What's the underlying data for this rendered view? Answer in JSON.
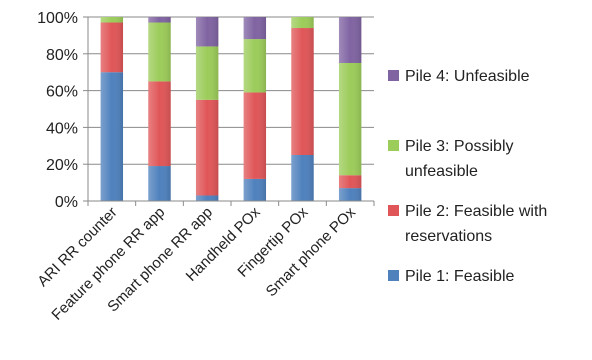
{
  "chart_data": {
    "type": "bar",
    "stacked": true,
    "categories": [
      "ARI RR counter",
      "Feature phone RR app",
      "Smart phone RR app",
      "Handheld POx",
      "Fingertip POx",
      "Smart phone POx"
    ],
    "series": [
      {
        "name": "Pile 1: Feasible",
        "color": "#4f81bd",
        "values": [
          70,
          19,
          3,
          12,
          25,
          7
        ]
      },
      {
        "name": "Pile 2: Feasible with reservations",
        "color": "#e05658",
        "values": [
          27,
          46,
          52,
          47,
          69,
          7
        ]
      },
      {
        "name": "Pile 3: Possibly unfeasible",
        "color": "#9ccc5a",
        "values": [
          3,
          32,
          29,
          29,
          6,
          61
        ]
      },
      {
        "name": "Pile 4: Unfeasible",
        "color": "#8064a2",
        "values": [
          0,
          3,
          16,
          12,
          0,
          25
        ]
      }
    ],
    "yticks": [
      "0%",
      "20%",
      "40%",
      "60%",
      "80%",
      "100%"
    ],
    "ylim": [
      0,
      100
    ],
    "xlabel": "",
    "ylabel": "",
    "title": "",
    "grid": true,
    "legend_position": "right"
  }
}
